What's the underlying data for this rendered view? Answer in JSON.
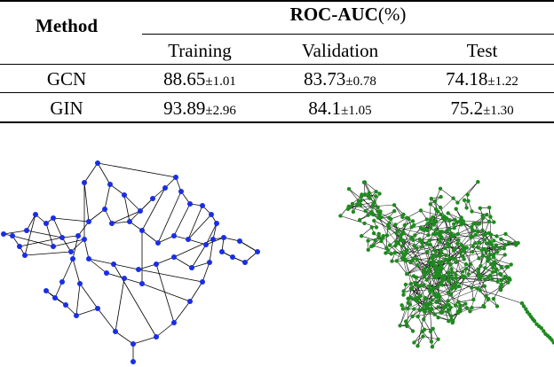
{
  "table": {
    "method_header": "Method",
    "group_header": "ROC-AUC",
    "group_unit": "(%)",
    "columns": [
      "Training",
      "Validation",
      "Test"
    ],
    "rows": [
      {
        "method": "GCN",
        "cells": [
          {
            "mean": "88.65",
            "std": "±1.01"
          },
          {
            "mean": "83.73",
            "std": "±0.78"
          },
          {
            "mean": "74.18",
            "std": "±1.22"
          }
        ]
      },
      {
        "method": "GIN",
        "cells": [
          {
            "mean": "93.89",
            "std": "±2.96"
          },
          {
            "mean": "84.1",
            "std": "±1.05"
          },
          {
            "mean": "75.2",
            "std": "±1.30"
          }
        ]
      }
    ]
  },
  "graphs": [
    {
      "name": "small-molecular-graph",
      "color": "#1a2ee6"
    },
    {
      "name": "large-dense-graph",
      "color": "#1f8a1f"
    }
  ]
}
